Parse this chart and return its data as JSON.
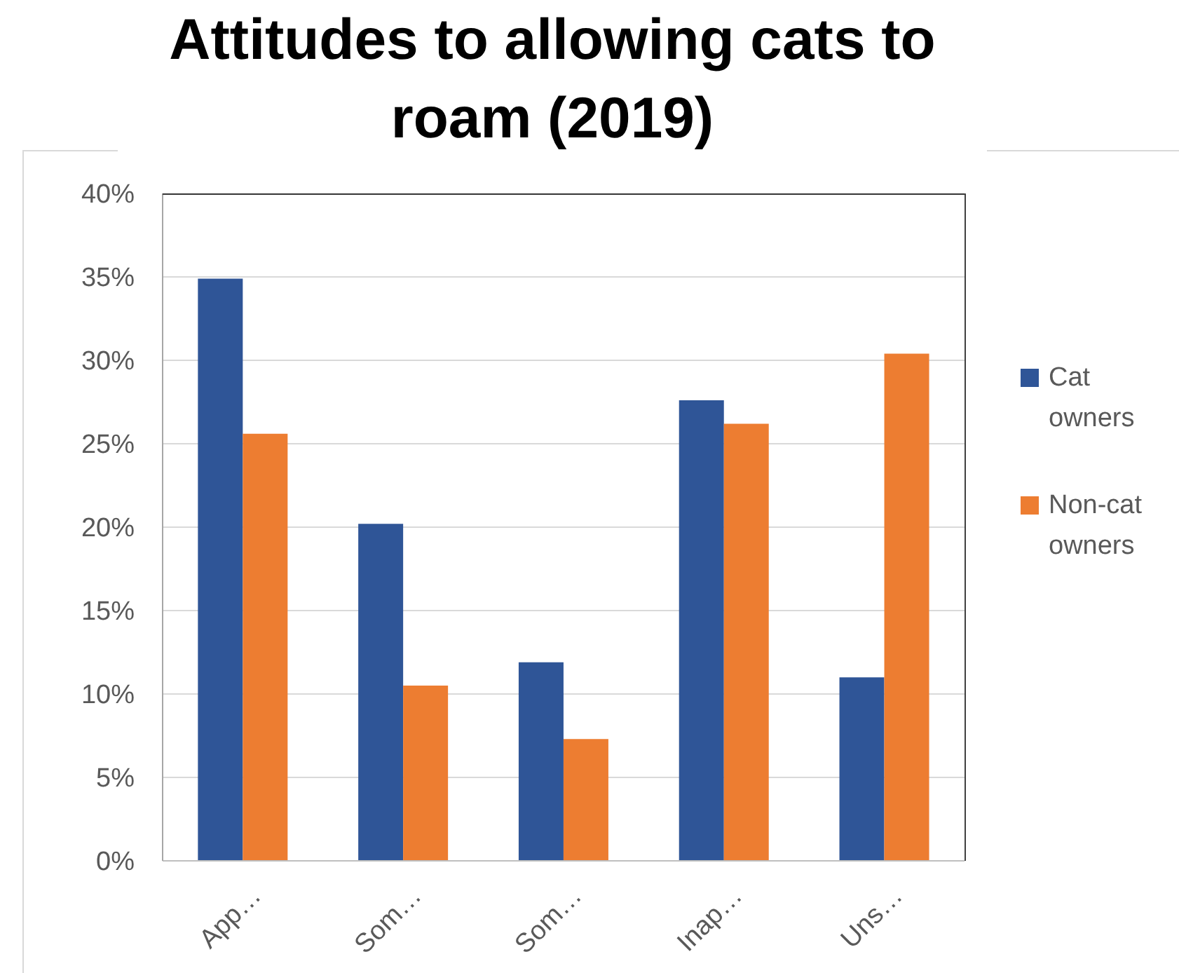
{
  "chart_data": {
    "type": "bar",
    "title": "Attitudes to allowing cats to roam (2019)",
    "categories": [
      "App…",
      "Som…",
      "Som…",
      "Inap…",
      "Uns…"
    ],
    "series": [
      {
        "name": "Cat owners",
        "color": "#2f5597",
        "values": [
          34.9,
          20.2,
          11.9,
          27.6,
          11.0
        ]
      },
      {
        "name": "Non-cat owners",
        "color": "#ed7d31",
        "values": [
          25.6,
          10.5,
          7.3,
          26.2,
          30.4
        ]
      }
    ],
    "ylim": [
      0,
      40
    ],
    "yticks": [
      {
        "value": 0,
        "label": "0%"
      },
      {
        "value": 5,
        "label": "5%"
      },
      {
        "value": 10,
        "label": "10%"
      },
      {
        "value": 15,
        "label": "15%"
      },
      {
        "value": 20,
        "label": "20%"
      },
      {
        "value": 25,
        "label": "25%"
      },
      {
        "value": 30,
        "label": "30%"
      },
      {
        "value": 35,
        "label": "35%"
      },
      {
        "value": 40,
        "label": "40%"
      }
    ],
    "grid": "y",
    "legend": "right"
  }
}
